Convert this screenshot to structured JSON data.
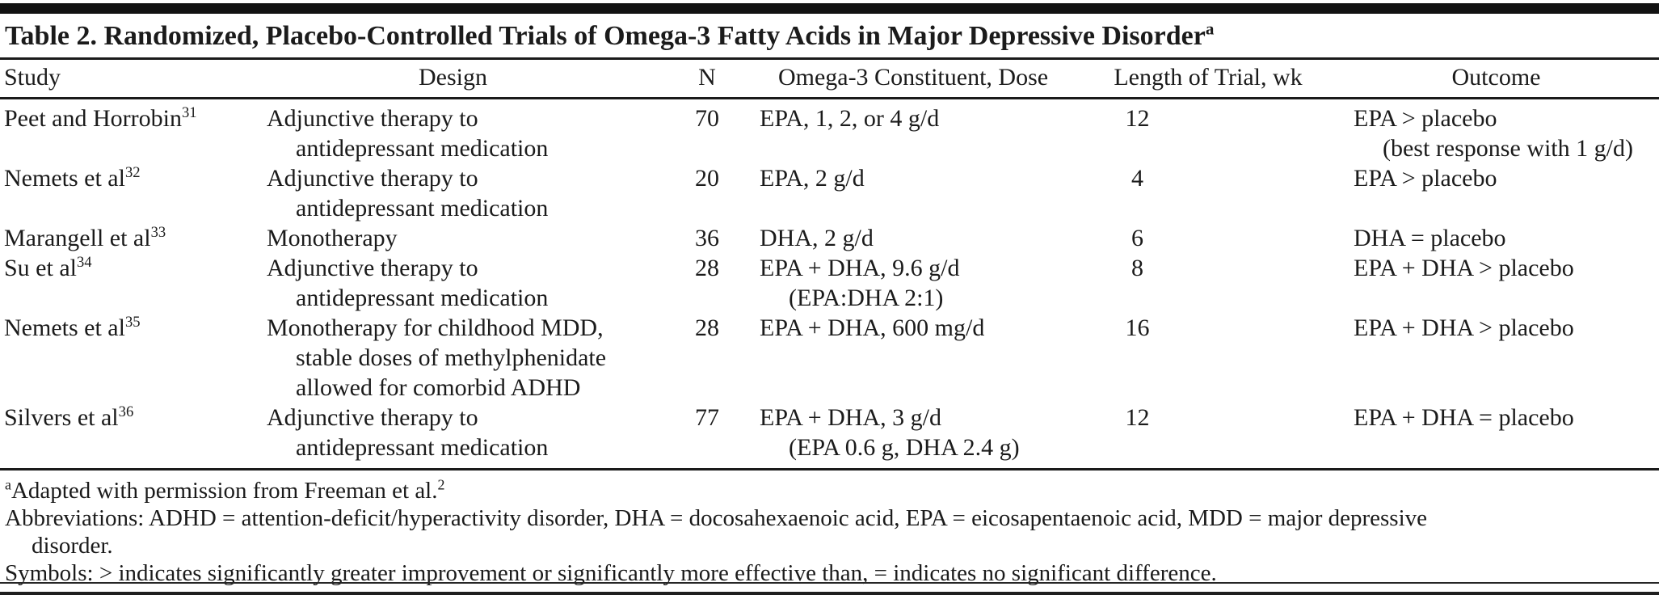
{
  "title": {
    "text": "Table 2. Randomized, Placebo-Controlled Trials of Omega-3 Fatty Acids in Major Depressive Disorder",
    "footnote_marker": "a"
  },
  "table": {
    "columns": [
      "Study",
      "Design",
      "N",
      "Omega-3 Constituent, Dose",
      "Length of Trial, wk",
      "Outcome"
    ],
    "rows": [
      {
        "study": {
          "name": "Peet and Horrobin",
          "ref": "31"
        },
        "design_lines": [
          "Adjunctive therapy to",
          "antidepressant medication"
        ],
        "n": "70",
        "dose_lines": [
          "EPA, 1, 2, or 4 g/d"
        ],
        "length_wk": "12",
        "outcome_lines": [
          "EPA > placebo",
          "(best response with 1 g/d)"
        ]
      },
      {
        "study": {
          "name": "Nemets et al",
          "ref": "32"
        },
        "design_lines": [
          "Adjunctive therapy to",
          "antidepressant medication"
        ],
        "n": "20",
        "dose_lines": [
          "EPA, 2 g/d"
        ],
        "length_wk": "4",
        "outcome_lines": [
          "EPA > placebo"
        ]
      },
      {
        "study": {
          "name": "Marangell et al",
          "ref": "33"
        },
        "design_lines": [
          "Monotherapy"
        ],
        "n": "36",
        "dose_lines": [
          "DHA, 2 g/d"
        ],
        "length_wk": "6",
        "outcome_lines": [
          "DHA = placebo"
        ]
      },
      {
        "study": {
          "name": "Su et al",
          "ref": "34"
        },
        "design_lines": [
          "Adjunctive therapy to",
          "antidepressant medication"
        ],
        "n": "28",
        "dose_lines": [
          "EPA + DHA, 9.6 g/d",
          "(EPA:DHA 2:1)"
        ],
        "length_wk": "8",
        "outcome_lines": [
          "EPA + DHA > placebo"
        ]
      },
      {
        "study": {
          "name": "Nemets et al",
          "ref": "35"
        },
        "design_lines": [
          "Monotherapy for childhood MDD,",
          "stable doses of methylphenidate",
          "allowed for comorbid ADHD"
        ],
        "n": "28",
        "dose_lines": [
          "EPA + DHA, 600 mg/d"
        ],
        "length_wk": "16",
        "outcome_lines": [
          "EPA + DHA > placebo"
        ]
      },
      {
        "study": {
          "name": "Silvers et al",
          "ref": "36"
        },
        "design_lines": [
          "Adjunctive therapy to",
          "antidepressant medication"
        ],
        "n": "77",
        "dose_lines": [
          "EPA + DHA, 3 g/d",
          "(EPA 0.6 g, DHA 2.4 g)"
        ],
        "length_wk": "12",
        "outcome_lines": [
          "EPA + DHA = placebo"
        ]
      }
    ]
  },
  "footnotes": {
    "adapted": {
      "marker": "a",
      "text": "Adapted with permission from Freeman et al.",
      "ref": "2"
    },
    "abbreviations_line1": "Abbreviations: ADHD = attention-deficit/hyperactivity disorder, DHA = docosahexaenoic acid, EPA = eicosapentaenoic acid, MDD = major depressive",
    "abbreviations_line2": "disorder.",
    "symbols": "Symbols: > indicates significantly greater improvement or significantly more effective than, = indicates no significant difference."
  },
  "colors": {
    "text": "#1b1b1b",
    "rule": "#1a1a1a",
    "background": "#ffffff"
  }
}
